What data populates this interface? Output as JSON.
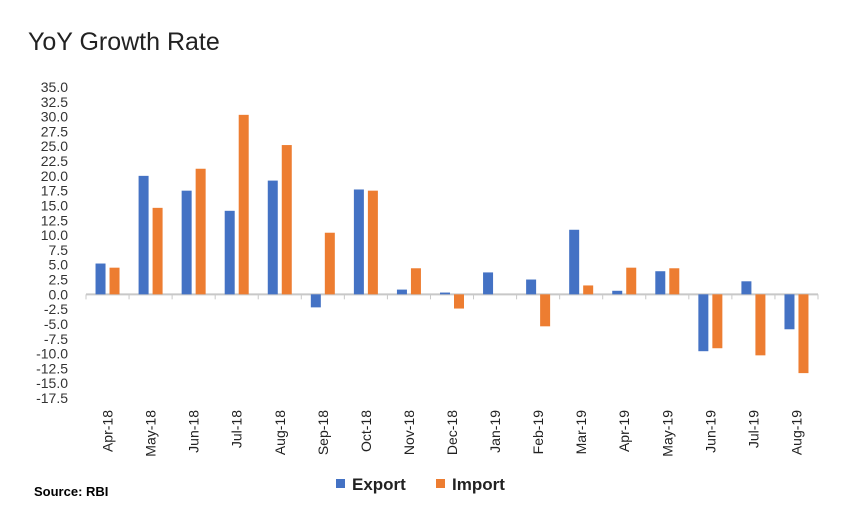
{
  "chart_data": {
    "type": "bar",
    "title": "YoY Growth Rate",
    "source": "Source: RBI",
    "categories": [
      "Apr-18",
      "May-18",
      "Jun-18",
      "Jul-18",
      "Aug-18",
      "Sep-18",
      "Oct-18",
      "Nov-18",
      "Dec-18",
      "Jan-19",
      "Feb-19",
      "Mar-19",
      "Apr-19",
      "May-19",
      "Jun-19",
      "Jul-19",
      "Aug-19"
    ],
    "series": [
      {
        "name": "Export",
        "color": "#4472c4",
        "values": [
          5.2,
          20.0,
          17.5,
          14.1,
          19.2,
          -2.2,
          17.7,
          0.8,
          0.3,
          3.7,
          2.5,
          10.9,
          0.6,
          3.9,
          -9.6,
          2.2,
          -5.9
        ]
      },
      {
        "name": "Import",
        "color": "#ed7d31",
        "values": [
          4.5,
          14.6,
          21.2,
          30.3,
          25.2,
          10.4,
          17.5,
          4.4,
          -2.4,
          0.0,
          -5.4,
          1.5,
          4.5,
          4.4,
          -9.1,
          -10.3,
          -13.3
        ]
      }
    ],
    "ylim": [
      -17.5,
      35.0
    ],
    "yticks": [
      "35.0",
      "32.5",
      "30.0",
      "27.5",
      "25.0",
      "22.5",
      "20.0",
      "17.5",
      "15.0",
      "12.5",
      "10.0",
      "7.5",
      "5.0",
      "2.5",
      "0.0",
      "-2.5",
      "-5.0",
      "-7.5",
      "-10.0",
      "-12.5",
      "-15.0",
      "-17.5"
    ],
    "legend": "bottom",
    "grid": false
  }
}
